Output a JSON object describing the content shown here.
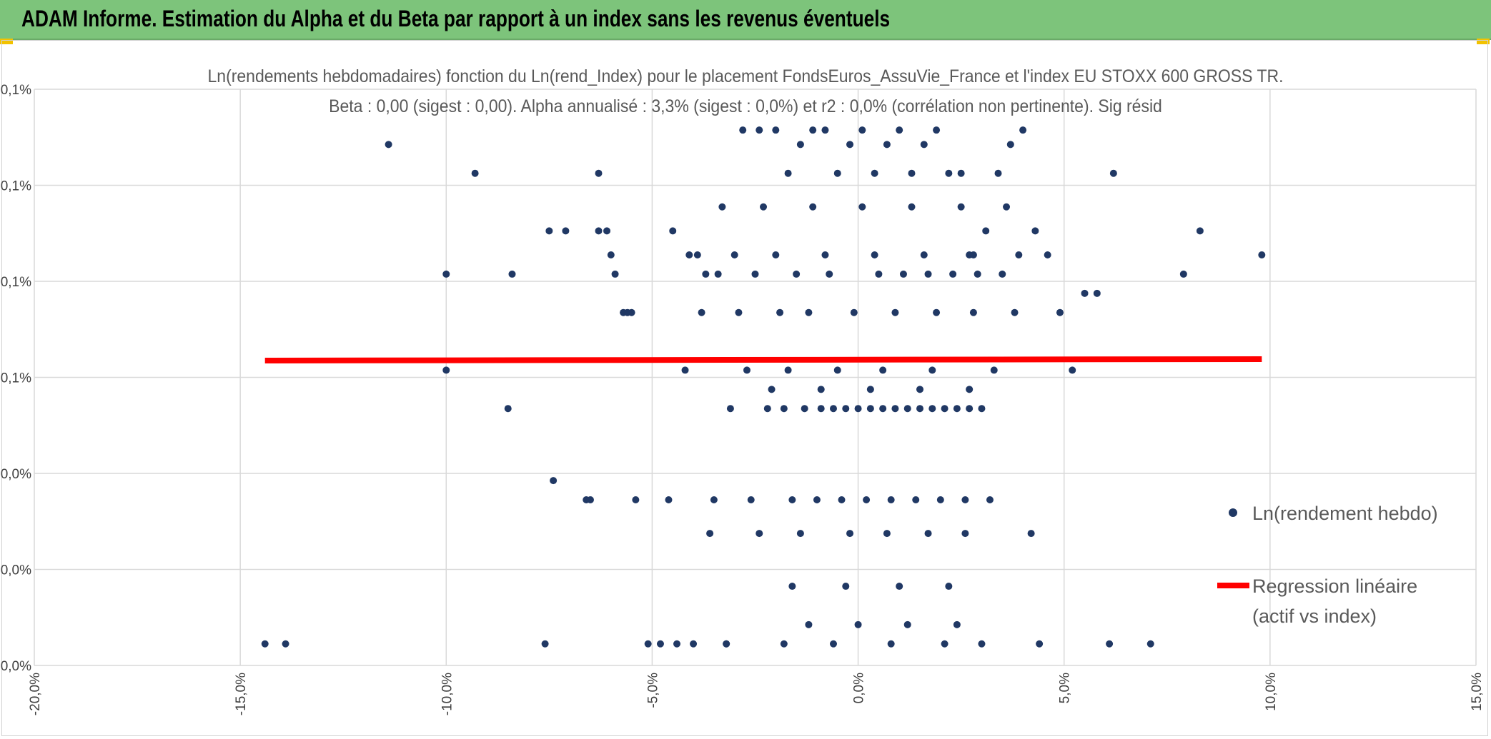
{
  "page": {
    "header_title": "ADAM Informe. Estimation du Alpha et du Beta par rapport à un index sans les revenus éventuels",
    "header_color": "#7dc47b"
  },
  "chart_data": {
    "type": "scatter",
    "title": "Ln(rendements hebdomadaires) fonction du Ln(rend_Index) pour le placement FondsEuros_AssuVie_France et l'index EU STOXX 600 GROSS TR.",
    "subtitle": "Beta : 0,00 (sigest : 0,00). Alpha annualisé : 3,3% (sigest : 0,0%) et r2 : 0,0% (corrélation non pertinente). Sig résid",
    "xlabel": "",
    "ylabel": "",
    "x_ticks": [
      "-20,0%",
      "-15,0%",
      "-10,0%",
      "-5,0%",
      "0,0%",
      "5,0%",
      "10,0%",
      "15,0%"
    ],
    "y_ticks": [
      "0,0%",
      "0,0%",
      "0,0%",
      "0,1%",
      "0,1%",
      "0,1%",
      "0,1%"
    ],
    "xlim": [
      -20,
      15
    ],
    "ylim": [
      0,
      0.12
    ],
    "grid": true,
    "legend_position": "right",
    "series": [
      {
        "name": "Ln(rendement hebdo)",
        "color": "#203864",
        "x": [
          -14.4,
          -13.9,
          -11.4,
          -9.3,
          -10,
          -8.4,
          -10,
          -8.5,
          -7.4,
          -7.6,
          -7.5,
          -7.1,
          -6.3,
          -6.6,
          -6.5,
          -6.3,
          -6.1,
          -6.0,
          -5.9,
          -5.7,
          -5.6,
          -5.5,
          -5.4,
          -5.1,
          -4.8,
          -4.6,
          -4.4,
          -4.2,
          -4.5,
          -3.9,
          -3.7,
          -3.5,
          -3.2,
          -2.8,
          -2.4,
          -2.0,
          -1.7,
          -1.4,
          -1.1,
          -0.8,
          -0.5,
          -0.2,
          0.1,
          0.4,
          0.7,
          1.0,
          1.3,
          1.6,
          1.9,
          2.2,
          2.5,
          2.8,
          3.1,
          3.4,
          3.7,
          4.0,
          4.3,
          4.6,
          4.9,
          5.2,
          5.5,
          5.8,
          6.2,
          6.1,
          7.1,
          7.9,
          8.3,
          9.8,
          -3.1,
          -2.2,
          -1.8,
          -1.3,
          -0.9,
          -0.6,
          -0.3,
          0.0,
          0.3,
          0.6,
          0.9,
          1.2,
          1.5,
          1.8,
          2.1,
          2.4,
          2.7,
          3.0,
          -2.6,
          -1.6,
          -1.0,
          -0.4,
          0.2,
          0.8,
          1.4,
          2.0,
          2.6,
          3.2,
          -3.4,
          -2.5,
          -1.5,
          -0.7,
          0.5,
          1.1,
          1.7,
          2.3,
          2.9,
          3.5,
          -3.8,
          -2.9,
          -1.9,
          -1.2,
          -0.1,
          0.9,
          1.9,
          2.8,
          3.8,
          -4.1,
          -3.0,
          -2.0,
          -0.8,
          0.4,
          1.6,
          2.7,
          3.9,
          -2.7,
          -1.7,
          -0.5,
          0.6,
          1.8,
          3.3,
          -3.3,
          -2.3,
          -1.1,
          0.1,
          1.3,
          2.5,
          3.6,
          -2.1,
          -0.9,
          0.3,
          1.5,
          2.7,
          -1.6,
          -0.3,
          1.0,
          2.2,
          -1.2,
          0.0,
          1.2,
          2.4,
          -3.6,
          -2.4,
          -1.4,
          -0.2,
          0.7,
          1.7,
          2.6,
          4.2,
          -4.0,
          -3.2,
          -1.8,
          -0.6,
          0.8,
          2.1,
          3.0,
          4.4
        ],
        "y": [
          0.0045,
          0.0045,
          0.1085,
          0.1025,
          0.0815,
          0.0815,
          0.0615,
          0.0535,
          0.0385,
          0.0045,
          0.0905,
          0.0905,
          0.1025,
          0.0345,
          0.0345,
          0.0905,
          0.0905,
          0.0855,
          0.0815,
          0.0735,
          0.0735,
          0.0735,
          0.0345,
          0.0045,
          0.0045,
          0.0345,
          0.0045,
          0.0615,
          0.0905,
          0.0855,
          0.0815,
          0.0345,
          0.0045,
          0.1115,
          0.1115,
          0.1115,
          0.1025,
          0.1085,
          0.1115,
          0.1115,
          0.1025,
          0.1085,
          0.1115,
          0.1025,
          0.1085,
          0.1115,
          0.1025,
          0.1085,
          0.1115,
          0.1025,
          0.1025,
          0.0855,
          0.0905,
          0.1025,
          0.1085,
          0.1115,
          0.0905,
          0.0855,
          0.0735,
          0.0615,
          0.0775,
          0.0775,
          0.1025,
          0.0045,
          0.0045,
          0.0815,
          0.0905,
          0.0855,
          0.0535,
          0.0535,
          0.0535,
          0.0535,
          0.0535,
          0.0535,
          0.0535,
          0.0535,
          0.0535,
          0.0535,
          0.0535,
          0.0535,
          0.0535,
          0.0535,
          0.0535,
          0.0535,
          0.0535,
          0.0535,
          0.0345,
          0.0345,
          0.0345,
          0.0345,
          0.0345,
          0.0345,
          0.0345,
          0.0345,
          0.0345,
          0.0345,
          0.0815,
          0.0815,
          0.0815,
          0.0815,
          0.0815,
          0.0815,
          0.0815,
          0.0815,
          0.0815,
          0.0815,
          0.0735,
          0.0735,
          0.0735,
          0.0735,
          0.0735,
          0.0735,
          0.0735,
          0.0735,
          0.0735,
          0.0855,
          0.0855,
          0.0855,
          0.0855,
          0.0855,
          0.0855,
          0.0855,
          0.0855,
          0.0615,
          0.0615,
          0.0615,
          0.0615,
          0.0615,
          0.0615,
          0.0955,
          0.0955,
          0.0955,
          0.0955,
          0.0955,
          0.0955,
          0.0955,
          0.0575,
          0.0575,
          0.0575,
          0.0575,
          0.0575,
          0.0165,
          0.0165,
          0.0165,
          0.0165,
          0.0085,
          0.0085,
          0.0085,
          0.0085,
          0.0275,
          0.0275,
          0.0275,
          0.0275,
          0.0275,
          0.0275,
          0.0275,
          0.0275,
          0.0045,
          0.0045,
          0.0045,
          0.0045,
          0.0045,
          0.0045,
          0.0045,
          0.0045
        ]
      },
      {
        "name": "Regression linéaire (actif vs index)",
        "legend_lines": [
          "Regression linéaire",
          "(actif vs index)"
        ],
        "color": "#ff0000",
        "type": "line",
        "x": [
          -14.4,
          9.8
        ],
        "y": [
          0.0635,
          0.0638
        ]
      }
    ]
  }
}
